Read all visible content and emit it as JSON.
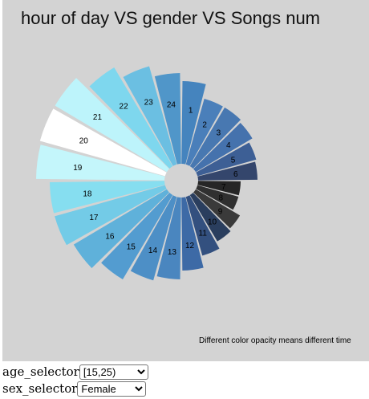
{
  "chart_data": {
    "type": "bar",
    "layout": "polar",
    "title": "hour of day VS gender VS Songs num",
    "categories": [
      "1",
      "2",
      "3",
      "4",
      "5",
      "6",
      "7",
      "8",
      "9",
      "10",
      "11",
      "12",
      "13",
      "14",
      "15",
      "16",
      "17",
      "18",
      "19",
      "20",
      "21",
      "22",
      "23",
      "24"
    ],
    "values": [
      124,
      106,
      106,
      103,
      97,
      95,
      74,
      74,
      85,
      88,
      97,
      112,
      123,
      129,
      143,
      156,
      164,
      164,
      181,
      183,
      183,
      164,
      148,
      134
    ],
    "colors": [
      "#4584be",
      "#4a7fba",
      "#4878b1",
      "#4572ad",
      "#3d5f95",
      "#34466c",
      "#262626",
      "#303030",
      "#3a3a3a",
      "#2a3e5e",
      "#33507f",
      "#3d6aa6",
      "#4a86bf",
      "#4d8fc6",
      "#539cd0",
      "#5fb1da",
      "#73cbe7",
      "#86def0",
      "#c4f6fb",
      "#ffffff",
      "#bdf4fb",
      "#7ed7ee",
      "#6bbfe2",
      "#5096c9"
    ],
    "annotation": "Different color opacity means different time"
  },
  "controls": {
    "age_label": "age_selector",
    "age_value": "[15,25)",
    "sex_label": "sex_selector",
    "sex_value": "Female"
  }
}
